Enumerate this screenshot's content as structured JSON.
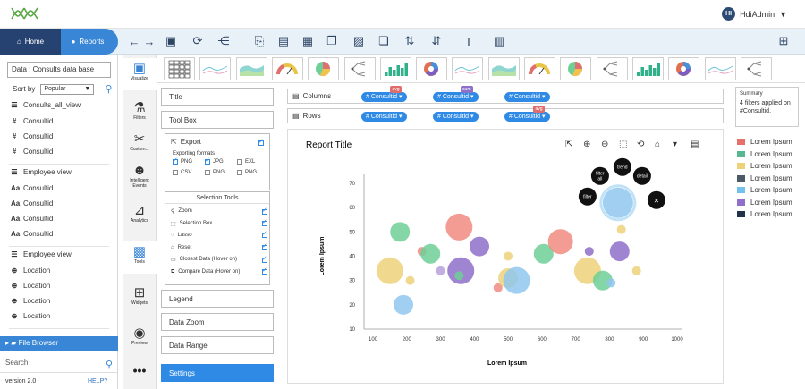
{
  "user": {
    "initials": "HI",
    "name": "HdiAdmin"
  },
  "nav": {
    "home": "Home",
    "reports": "Reports"
  },
  "left": {
    "data_label": "Data :",
    "data_value": "Consults data base",
    "sort_label": "Sort by",
    "sort_value": "Popular",
    "groups": [
      {
        "title": "Consults_all_view",
        "items": [
          {
            "icon": "#",
            "label": "Consultid"
          },
          {
            "icon": "#",
            "label": "Consultid"
          },
          {
            "icon": "#",
            "label": "Consultid"
          }
        ]
      },
      {
        "title": "Employee view",
        "items": [
          {
            "icon": "Aa",
            "label": "Consultid"
          },
          {
            "icon": "Aa",
            "label": "Consultid"
          },
          {
            "icon": "Aa",
            "label": "Consultid"
          },
          {
            "icon": "Aa",
            "label": "Consultid"
          }
        ]
      },
      {
        "title": "Employee view",
        "items": [
          {
            "icon": "⊕",
            "label": "Location"
          },
          {
            "icon": "⊕",
            "label": "Location"
          },
          {
            "icon": "⊕",
            "label": "Location"
          },
          {
            "icon": "⊕",
            "label": "Location"
          }
        ]
      }
    ],
    "file_browser": "File Browser",
    "search_placeholder": "Search",
    "version": "version 2.0",
    "help": "HELP?"
  },
  "strip": [
    {
      "icon": "picture-icon",
      "label": "Visualize",
      "selected": true
    },
    {
      "icon": "filter-icon",
      "label": "Filters",
      "selected": false
    },
    {
      "icon": "tools-icon",
      "label": "Custom...",
      "selected": false
    },
    {
      "icon": "head-icon",
      "label": "Intelligent Events",
      "selected": false
    },
    {
      "icon": "analytics-icon",
      "label": "Analytics",
      "selected": false
    },
    {
      "icon": "toolbox-icon",
      "label": "Tools",
      "selected": true
    },
    {
      "icon": "widgets-icon",
      "label": "Widgets",
      "selected": false
    },
    {
      "icon": "eye-icon",
      "label": "Preview",
      "selected": false
    }
  ],
  "settings": {
    "title": "Title",
    "toolbox": "Tool Box",
    "export": "Export",
    "exporting_formats": "Exporting formats",
    "formats": [
      {
        "label": "PNG",
        "checked": true
      },
      {
        "label": "JPG",
        "checked": true
      },
      {
        "label": "EXL",
        "checked": false
      },
      {
        "label": "CSV",
        "checked": false
      },
      {
        "label": "PNG",
        "checked": false
      },
      {
        "label": "PNG",
        "checked": false
      }
    ],
    "selection_tools": "Selection Tools",
    "tools": [
      {
        "label": "Zoom"
      },
      {
        "label": "Selection Box"
      },
      {
        "label": "Lasso"
      },
      {
        "label": "Reset"
      },
      {
        "label": "Closest Data (Hover on)"
      },
      {
        "label": "Compare Data (Hover on)"
      }
    ],
    "legend": "Legend",
    "data_zoom": "Data Zoom",
    "data_range": "Data Range",
    "settings": "Settings"
  },
  "shelves": {
    "columns_label": "Columns",
    "rows_label": "Rows",
    "columns": [
      {
        "label": "Consultid",
        "tag": "avg",
        "tag_color": "#e06d6d"
      },
      {
        "label": "Consultid",
        "tag": "sum",
        "tag_color": "#8e6fc9"
      },
      {
        "label": "Consultid",
        "tag": "",
        "tag_color": ""
      }
    ],
    "rows": [
      {
        "label": "Consultid",
        "tag": "",
        "tag_color": ""
      },
      {
        "label": "Consultid",
        "tag": "",
        "tag_color": ""
      },
      {
        "label": "Consultid",
        "tag": "avg",
        "tag_color": "#e06d6d"
      }
    ]
  },
  "report": {
    "title": "Report Title",
    "bubbles": [
      "filter all",
      "trend",
      "detail",
      "filter"
    ]
  },
  "chart_data": {
    "type": "scatter",
    "title": "Report Title",
    "xlabel": "Lorem Ipsum",
    "ylabel": "Lorem Ipsum",
    "xlim": [
      100,
      1000
    ],
    "ylim": [
      10,
      70
    ],
    "xticks": [
      100,
      200,
      300,
      400,
      500,
      600,
      700,
      800,
      900,
      1000
    ],
    "yticks": [
      10,
      20,
      30,
      40,
      50,
      60,
      70
    ],
    "points": [
      {
        "x": 150,
        "y": 34,
        "r": 15,
        "color": "#edd27a"
      },
      {
        "x": 180,
        "y": 50,
        "r": 11,
        "color": "#6fcf97"
      },
      {
        "x": 190,
        "y": 20,
        "r": 11,
        "color": "#8fc7ef"
      },
      {
        "x": 210,
        "y": 30,
        "r": 5,
        "color": "#edd27a"
      },
      {
        "x": 245,
        "y": 42,
        "r": 5,
        "color": "#f08b80"
      },
      {
        "x": 270,
        "y": 41,
        "r": 11,
        "color": "#6fcf97"
      },
      {
        "x": 300,
        "y": 34,
        "r": 5,
        "color": "#b6a1dd"
      },
      {
        "x": 355,
        "y": 52,
        "r": 15,
        "color": "#f08b80"
      },
      {
        "x": 360,
        "y": 34,
        "r": 15,
        "color": "#8e6fc9"
      },
      {
        "x": 355,
        "y": 32,
        "r": 5,
        "color": "#6fcf97"
      },
      {
        "x": 415,
        "y": 44,
        "r": 11,
        "color": "#8e6fc9"
      },
      {
        "x": 470,
        "y": 27,
        "r": 5,
        "color": "#f08b80"
      },
      {
        "x": 500,
        "y": 40,
        "r": 5,
        "color": "#edd27a"
      },
      {
        "x": 500,
        "y": 31,
        "r": 11,
        "color": "#edd27a"
      },
      {
        "x": 525,
        "y": 30,
        "r": 15,
        "color": "#8fc7ef"
      },
      {
        "x": 605,
        "y": 41,
        "r": 11,
        "color": "#6fcf97"
      },
      {
        "x": 655,
        "y": 46,
        "r": 14,
        "color": "#f08b80"
      },
      {
        "x": 735,
        "y": 34,
        "r": 15,
        "color": "#edd27a"
      },
      {
        "x": 740,
        "y": 42,
        "r": 5,
        "color": "#8e6fc9"
      },
      {
        "x": 780,
        "y": 30,
        "r": 11,
        "color": "#6fcf97"
      },
      {
        "x": 805,
        "y": 29,
        "r": 5,
        "color": "#8fc7ef"
      },
      {
        "x": 825,
        "y": 62,
        "r": 17,
        "color": "#8fc7ef"
      },
      {
        "x": 830,
        "y": 42,
        "r": 11,
        "color": "#8e6fc9"
      },
      {
        "x": 835,
        "y": 51,
        "r": 5,
        "color": "#edd27a"
      },
      {
        "x": 880,
        "y": 34,
        "r": 5,
        "color": "#edd27a"
      }
    ],
    "legend": [
      {
        "label": "Lorem Ipsum",
        "color": "#e8706a"
      },
      {
        "label": "Lorem Ipsum",
        "color": "#56b892"
      },
      {
        "label": "Lorem Ipsum",
        "color": "#edd27a"
      },
      {
        "label": "Lorem Ipsum",
        "color": "#4d5a66"
      },
      {
        "label": "Lorem Ipsum",
        "color": "#73c2ee"
      },
      {
        "label": "Lorem Ipsum",
        "color": "#8e6fc9"
      },
      {
        "label": "Lorem Ipsum",
        "color": "#22304a"
      }
    ]
  },
  "summary": {
    "title": "Summary",
    "text": "4 filters applied on #Consultid."
  },
  "colors": {
    "navy": "#254270",
    "accent": "#3a86d6",
    "navbar_bg": "#e8f1f8"
  }
}
